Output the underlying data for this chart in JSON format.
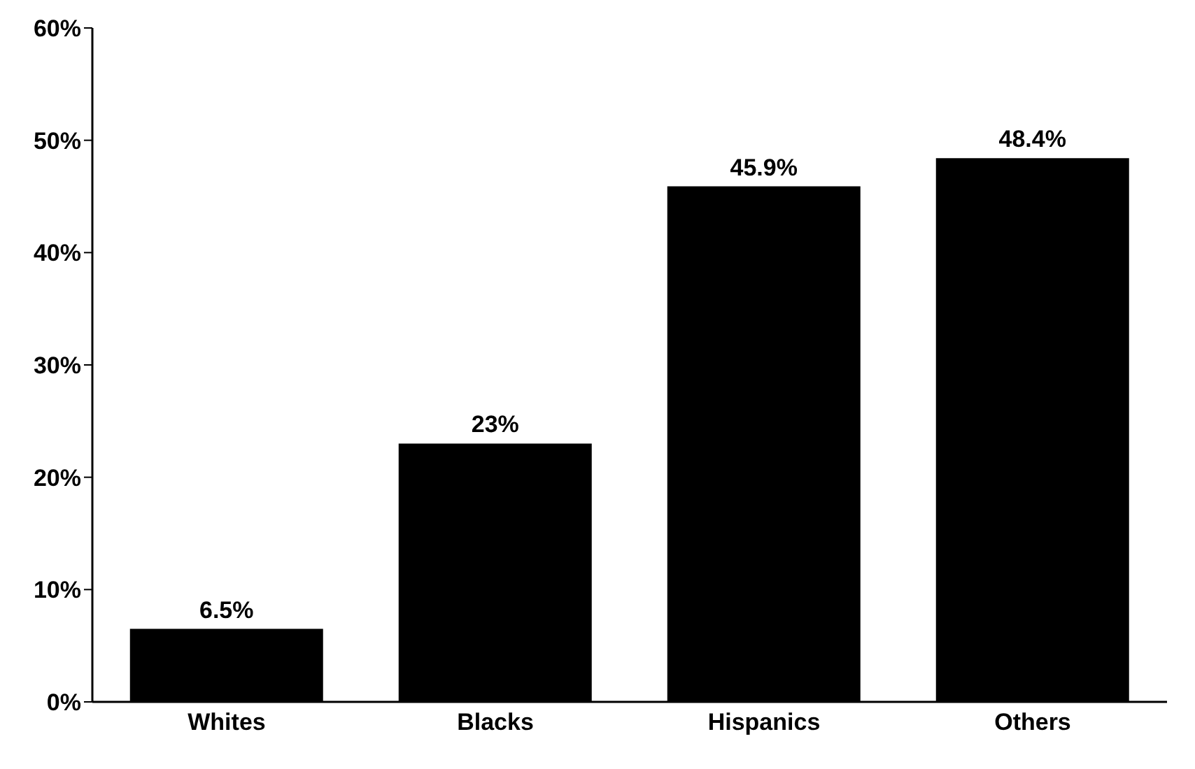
{
  "chart_data": {
    "type": "bar",
    "categories": [
      "Whites",
      "Blacks",
      "Hispanics",
      "Others"
    ],
    "values": [
      6.5,
      23,
      45.9,
      48.4
    ],
    "value_labels": [
      "6.5%",
      "23%",
      "45.9%",
      "48.4%"
    ],
    "color": "#000000",
    "ylim": [
      0,
      60
    ],
    "yticks": [
      {
        "value": 0,
        "label": "0%"
      },
      {
        "value": 10,
        "label": "10%"
      },
      {
        "value": 20,
        "label": "20%"
      },
      {
        "value": 30,
        "label": "30%"
      },
      {
        "value": 40,
        "label": "40%"
      },
      {
        "value": 50,
        "label": "50%"
      },
      {
        "value": 60,
        "label": "60%"
      }
    ],
    "grid": false,
    "legend": false
  }
}
